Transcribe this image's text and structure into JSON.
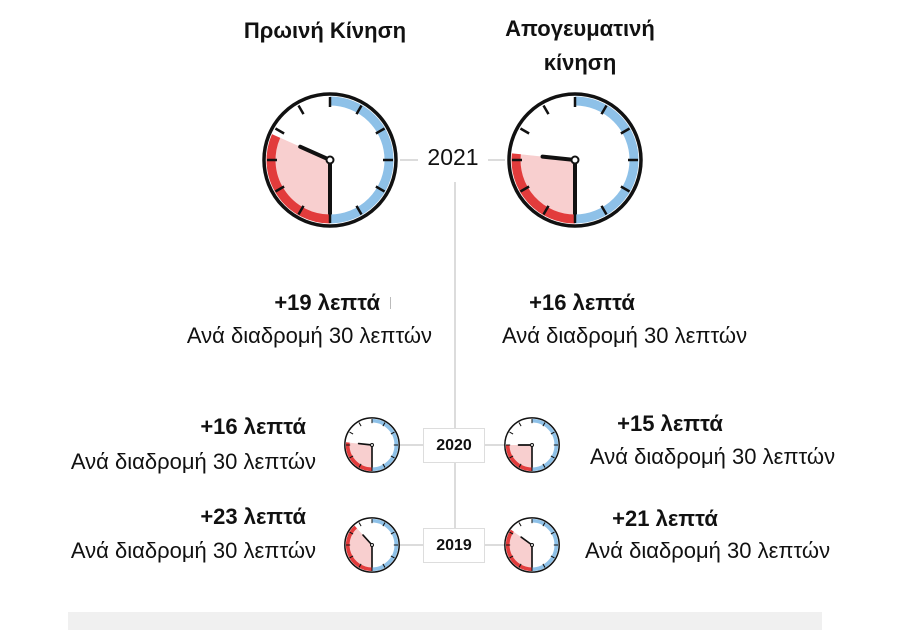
{
  "headers": {
    "morning": "Πρωινή Κίνηση",
    "afternoon_line1": "Απογευματινή",
    "afternoon_line2": "κίνηση"
  },
  "colors": {
    "base_arc": "#8ec1e8",
    "extra_arc": "#e23c3c",
    "extra_fill": "#f8cfcf",
    "dial": "#111111"
  },
  "base_minutes": 30,
  "rows": [
    {
      "year": "2021",
      "morning": {
        "extra": "+19 λεπτά",
        "extra_minutes": 19,
        "note": "Ανά διαδρομή 30 λεπτών"
      },
      "afternoon": {
        "extra": "+16 λεπτά",
        "extra_minutes": 16,
        "note": "Ανά διαδρομή 30 λεπτών"
      }
    },
    {
      "year": "2020",
      "morning": {
        "extra": "+16 λεπτά",
        "extra_minutes": 16,
        "note": "Ανά διαδρομή 30 λεπτών"
      },
      "afternoon": {
        "extra": "+15 λεπτά",
        "extra_minutes": 15,
        "note": "Ανά διαδρομή 30 λεπτών"
      }
    },
    {
      "year": "2019",
      "morning": {
        "extra": "+23 λεπτά",
        "extra_minutes": 23,
        "note": "Ανά διαδρομή 30 λεπτών"
      },
      "afternoon": {
        "extra": "+21 λεπτά",
        "extra_minutes": 21,
        "note": "Ανά διαδρομή 30 λεπτών"
      }
    }
  ]
}
